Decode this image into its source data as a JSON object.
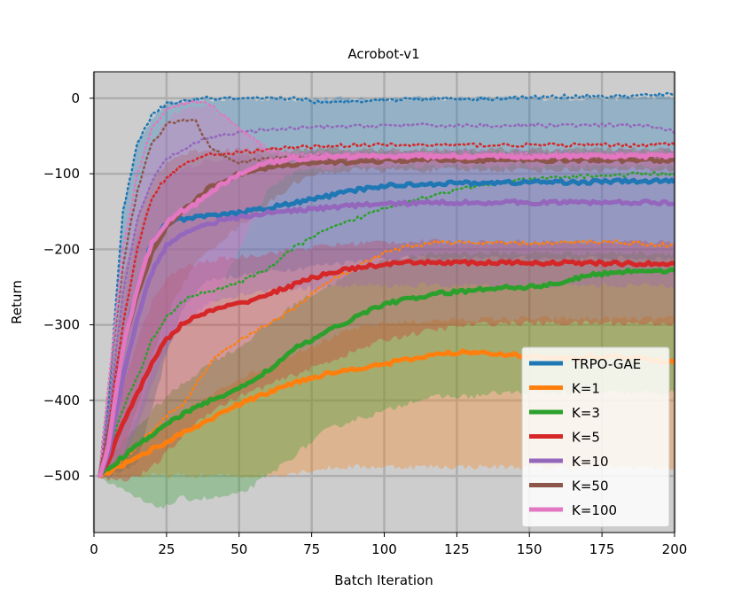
{
  "chart_data": {
    "type": "line",
    "title": "Acrobot-v1",
    "xlabel": "Batch Iteration",
    "ylabel": "Return",
    "xlim": [
      0,
      200
    ],
    "ylim": [
      -575,
      35
    ],
    "xticks": [
      0,
      25,
      50,
      75,
      100,
      125,
      150,
      175,
      200
    ],
    "yticks": [
      0,
      -100,
      -200,
      -300,
      -400,
      -500
    ],
    "grid": true,
    "legend_position": "lower-right",
    "background": "#cdcdcd",
    "grid_color": "#aeaeae",
    "x": [
      2,
      5,
      10,
      15,
      20,
      25,
      30,
      35,
      40,
      50,
      60,
      70,
      80,
      90,
      100,
      110,
      120,
      130,
      140,
      150,
      160,
      170,
      180,
      190,
      200
    ],
    "series": [
      {
        "name": "TRPO-GAE",
        "color": "#1f77b4",
        "mean": [
          -500,
          -480,
          -330,
          -250,
          -190,
          -165,
          -160,
          -158,
          -156,
          -152,
          -145,
          -138,
          -130,
          -122,
          -116,
          -114,
          -113,
          -112,
          -112,
          -111,
          -111,
          -111,
          -110,
          -110,
          -110
        ],
        "upper": [
          -490,
          -400,
          -150,
          -60,
          -25,
          -8,
          -4,
          -3,
          -2,
          -1,
          -1,
          -1,
          -1,
          -1,
          0,
          0,
          0,
          0,
          0,
          0,
          0,
          0,
          0,
          1,
          2
        ],
        "lower": [
          -500,
          -500,
          -495,
          -480,
          -410,
          -340,
          -285,
          -255,
          -240,
          -235,
          -230,
          -225,
          -220,
          -215,
          -212,
          -212,
          -212,
          -212,
          -212,
          -212,
          -212,
          -212,
          -212,
          -212,
          -212
        ],
        "max": [
          -495,
          -400,
          -150,
          -60,
          -22,
          -8,
          -4,
          -2,
          0,
          -1,
          -1,
          0,
          -7,
          -3,
          -2,
          -1,
          0,
          -1,
          0,
          1,
          2,
          3,
          2,
          4,
          5
        ]
      },
      {
        "name": "K=1",
        "color": "#ff7f0e",
        "mean": [
          -500,
          -495,
          -485,
          -475,
          -465,
          -455,
          -445,
          -435,
          -425,
          -405,
          -390,
          -375,
          -365,
          -358,
          -352,
          -345,
          -338,
          -336,
          -338,
          -342,
          -345,
          -343,
          -342,
          -345,
          -350
        ],
        "upper": [
          -495,
          -490,
          -475,
          -460,
          -445,
          -430,
          -418,
          -405,
          -395,
          -370,
          -355,
          -335,
          -320,
          -305,
          -298,
          -296,
          -294,
          -293,
          -292,
          -292,
          -292,
          -292,
          -292,
          -292,
          -292
        ],
        "lower": [
          -500,
          -500,
          -500,
          -500,
          -500,
          -500,
          -500,
          -500,
          -500,
          -500,
          -500,
          -495,
          -490,
          -488,
          -488,
          -488,
          -488,
          -488,
          -488,
          -488,
          -488,
          -488,
          -488,
          -488,
          -490
        ],
        "max": [
          -495,
          -490,
          -480,
          -460,
          -440,
          -420,
          -410,
          -380,
          -350,
          -320,
          -300,
          -275,
          -245,
          -225,
          -205,
          -195,
          -190,
          -192,
          -192,
          -192,
          -192,
          -190,
          -190,
          -193,
          -195
        ]
      },
      {
        "name": "K=3",
        "color": "#2ca02c",
        "mean": [
          -500,
          -490,
          -475,
          -460,
          -445,
          -430,
          -420,
          -410,
          -400,
          -385,
          -360,
          -330,
          -310,
          -290,
          -272,
          -265,
          -258,
          -255,
          -250,
          -250,
          -245,
          -235,
          -230,
          -228,
          -228
        ],
        "upper": [
          -495,
          -480,
          -455,
          -435,
          -415,
          -395,
          -380,
          -365,
          -350,
          -330,
          -300,
          -270,
          -250,
          -230,
          -215,
          -210,
          -205,
          -205,
          -205,
          -205,
          -205,
          -205,
          -205,
          -205,
          -205
        ],
        "lower": [
          -500,
          -510,
          -520,
          -530,
          -540,
          -540,
          -530,
          -530,
          -530,
          -525,
          -500,
          -470,
          -440,
          -425,
          -415,
          -400,
          -395,
          -395,
          -390,
          -390,
          -390,
          -390,
          -390,
          -390,
          -390
        ],
        "max": [
          -495,
          -470,
          -410,
          -370,
          -320,
          -290,
          -270,
          -260,
          -255,
          -245,
          -225,
          -195,
          -175,
          -160,
          -145,
          -135,
          -125,
          -118,
          -112,
          -108,
          -105,
          -103,
          -102,
          -100,
          -100
        ]
      },
      {
        "name": "K=5",
        "color": "#d62728",
        "mean": [
          -500,
          -480,
          -430,
          -390,
          -350,
          -320,
          -300,
          -290,
          -282,
          -272,
          -260,
          -245,
          -232,
          -225,
          -220,
          -218,
          -217,
          -218,
          -218,
          -218,
          -218,
          -218,
          -219,
          -219,
          -220
        ],
        "upper": [
          -490,
          -460,
          -380,
          -320,
          -270,
          -240,
          -225,
          -220,
          -215,
          -210,
          -205,
          -200,
          -195,
          -192,
          -190,
          -190,
          -190,
          -190,
          -190,
          -190,
          -190,
          -190,
          -190,
          -190,
          -190
        ],
        "lower": [
          -500,
          -505,
          -505,
          -500,
          -490,
          -470,
          -450,
          -430,
          -415,
          -395,
          -380,
          -365,
          -350,
          -335,
          -320,
          -312,
          -305,
          -300,
          -298,
          -298,
          -298,
          -298,
          -298,
          -298,
          -298
        ],
        "max": [
          -495,
          -430,
          -300,
          -200,
          -130,
          -105,
          -90,
          -80,
          -75,
          -72,
          -68,
          -65,
          -63,
          -62,
          -62,
          -62,
          -62,
          -62,
          -62,
          -62,
          -62,
          -62,
          -62,
          -62,
          -60
        ]
      },
      {
        "name": "K=10",
        "color": "#9467bd",
        "mean": [
          -500,
          -470,
          -370,
          -290,
          -230,
          -195,
          -180,
          -172,
          -165,
          -158,
          -152,
          -148,
          -145,
          -142,
          -140,
          -139,
          -138,
          -138,
          -138,
          -138,
          -138,
          -138,
          -138,
          -138,
          -138
        ],
        "upper": [
          -490,
          -430,
          -280,
          -180,
          -130,
          -105,
          -95,
          -88,
          -82,
          -78,
          -75,
          -72,
          -70,
          -70,
          -70,
          -70,
          -70,
          -70,
          -70,
          -70,
          -70,
          -70,
          -70,
          -70,
          -70
        ],
        "lower": [
          -500,
          -500,
          -480,
          -440,
          -380,
          -330,
          -300,
          -285,
          -270,
          -260,
          -255,
          -252,
          -250,
          -248,
          -248,
          -248,
          -248,
          -248,
          -248,
          -248,
          -248,
          -248,
          -248,
          -248,
          -248
        ],
        "max": [
          -495,
          -420,
          -260,
          -160,
          -110,
          -80,
          -70,
          -60,
          -52,
          -45,
          -42,
          -40,
          -38,
          -37,
          -36,
          -36,
          -36,
          -36,
          -36,
          -36,
          -36,
          -36,
          -36,
          -36,
          -45
        ]
      },
      {
        "name": "K=50",
        "color": "#8c564b",
        "mean": [
          -500,
          -450,
          -330,
          -260,
          -205,
          -170,
          -150,
          -135,
          -118,
          -100,
          -92,
          -88,
          -85,
          -84,
          -83,
          -82,
          -82,
          -82,
          -82,
          -82,
          -82,
          -82,
          -82,
          -82,
          -82
        ],
        "upper": [
          -490,
          -400,
          -240,
          -160,
          -110,
          -85,
          -75,
          -70,
          -68,
          -68,
          -68,
          -68,
          -68,
          -68,
          -68,
          -68,
          -68,
          -68,
          -68,
          -68,
          -68,
          -68,
          -68,
          -68,
          -68
        ],
        "lower": [
          -500,
          -500,
          -470,
          -410,
          -340,
          -290,
          -250,
          -220,
          -200,
          -170,
          -140,
          -110,
          -98,
          -95,
          -95,
          -95,
          -95,
          -95,
          -95,
          -95,
          -95,
          -95,
          -95,
          -95,
          -95
        ],
        "max": [
          -495,
          -380,
          -220,
          -120,
          -60,
          -35,
          -28,
          -30,
          -65,
          -85,
          -80,
          -78,
          -78,
          -78,
          -78,
          -78,
          -78,
          -78,
          -78,
          -78,
          -78,
          -78,
          -78,
          -78,
          -78
        ]
      },
      {
        "name": "K=100",
        "color": "#e377c2",
        "mean": [
          -500,
          -460,
          -330,
          -250,
          -190,
          -165,
          -150,
          -140,
          -125,
          -100,
          -85,
          -80,
          -78,
          -77,
          -77,
          -77,
          -77,
          -77,
          -77,
          -77,
          -77,
          -77,
          -77,
          -77,
          -77
        ],
        "upper": [
          -490,
          -400,
          -220,
          -120,
          -60,
          -30,
          -15,
          -10,
          -12,
          -40,
          -65,
          -72,
          -72,
          -72,
          -72,
          -72,
          -72,
          -72,
          -72,
          -72,
          -72,
          -72,
          -72,
          -72,
          -72
        ],
        "lower": [
          -500,
          -500,
          -470,
          -420,
          -360,
          -320,
          -300,
          -290,
          -280,
          -200,
          -120,
          -95,
          -92,
          -90,
          -90,
          -90,
          -90,
          -90,
          -90,
          -90,
          -90,
          -90,
          -90,
          -90,
          -90
        ],
        "max": [
          -495,
          -380,
          -200,
          -100,
          -40,
          -15,
          -8,
          -5,
          -8,
          -40,
          -70,
          -75,
          -75,
          -75,
          -75,
          -75,
          -75,
          -75,
          -75,
          -75,
          -75,
          -75,
          -75,
          -75,
          -75
        ]
      }
    ]
  }
}
